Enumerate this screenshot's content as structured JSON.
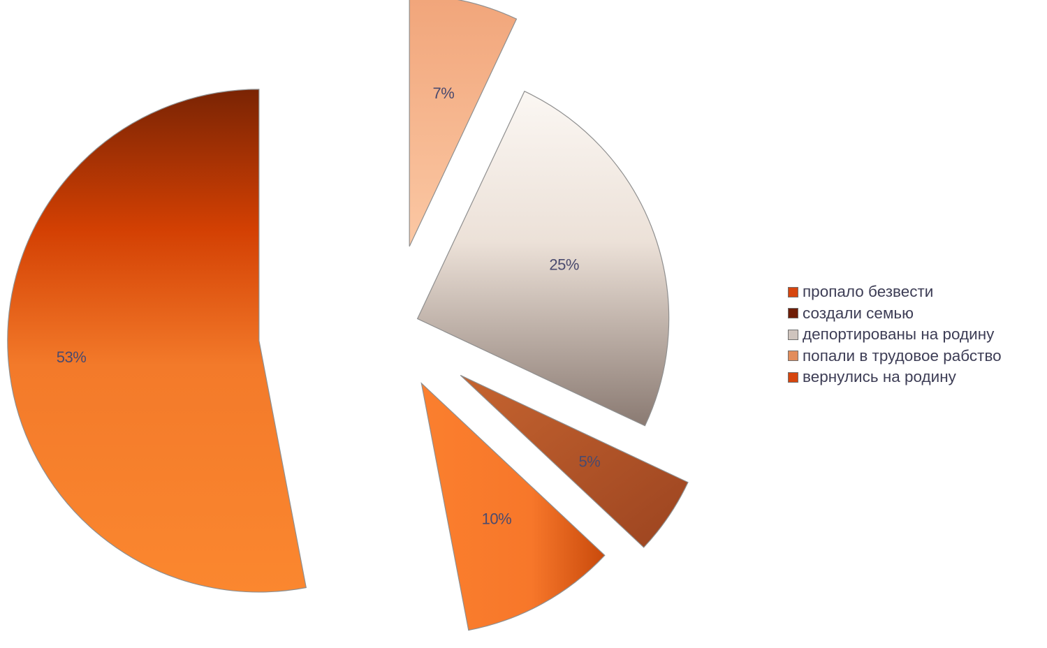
{
  "chart_data": {
    "type": "pie",
    "exploded": true,
    "slices": [
      {
        "label": "вернулись на родину",
        "value": 53,
        "value_label": "53%",
        "color": "#e85d10"
      },
      {
        "label": "пропало безвести",
        "value": 10,
        "value_label": "10%",
        "color": "#f57a2c"
      },
      {
        "label": "создали семью",
        "value": 5,
        "value_label": "5%",
        "color": "#b6562a"
      },
      {
        "label": "депортированы на родину",
        "value": 25,
        "value_label": "25%",
        "color": "#e4d9d1"
      },
      {
        "label": "попали в трудовое рабство",
        "value": 7,
        "value_label": "7%",
        "color": "#f4b489"
      }
    ],
    "legend": {
      "position": "right",
      "entries": [
        {
          "label": "пропало безвести",
          "color": "#d6450e"
        },
        {
          "label": "создали семью",
          "color": "#6e1d06"
        },
        {
          "label": "депортированы на родину",
          "color": "#cfc4bd"
        },
        {
          "label": "попали в трудовое рабство",
          "color": "#e28d5c"
        },
        {
          "label": "вернулись на родину",
          "color": "#d6450e"
        }
      ]
    },
    "label_color": "#4a4a6e"
  }
}
